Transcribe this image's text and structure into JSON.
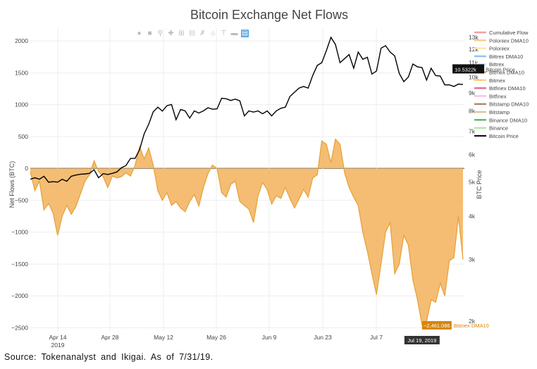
{
  "chart_data": {
    "type": "area",
    "title": "Bitcoin Exchange Net Flows",
    "ylabel": "Net Flows (BTC)",
    "y2label": "BTC Price",
    "ylim": [
      -2500,
      2200
    ],
    "yticks": [
      "2000",
      "1500",
      "1000",
      "500",
      "0",
      "−500",
      "−1000",
      "−1500",
      "−2000",
      "−2500"
    ],
    "y2ticks": [
      "13k",
      "12k",
      "11k",
      "10k",
      "9k",
      "8k",
      "7k",
      "6k",
      "5k",
      "4k",
      "3k",
      "2k"
    ],
    "xticks": [
      {
        "label": "Apr 14",
        "sub": "2019"
      },
      {
        "label": "Apr 28",
        "sub": ""
      },
      {
        "label": "May 12",
        "sub": ""
      },
      {
        "label": "May 26",
        "sub": ""
      },
      {
        "label": "Jun 9",
        "sub": ""
      },
      {
        "label": "Jun 23",
        "sub": ""
      },
      {
        "label": "Jul 7",
        "sub": ""
      }
    ],
    "series": [
      {
        "name": "Bitmex DMA10",
        "values": [
          -50,
          -350,
          -200,
          -650,
          -550,
          -700,
          -1050,
          -750,
          -580,
          -720,
          -600,
          -400,
          -200,
          -100,
          120,
          -50,
          -130,
          -300,
          -120,
          -150,
          -130,
          -70,
          -120,
          50,
          340,
          150,
          320,
          50,
          -350,
          -500,
          -380,
          -580,
          -520,
          -620,
          -680,
          -520,
          -410,
          -590,
          -300,
          -80,
          50,
          0,
          -380,
          -450,
          -250,
          -200,
          -520,
          -580,
          -640,
          -850,
          -430,
          -220,
          -330,
          -560,
          -430,
          -470,
          -300,
          -470,
          -620,
          -480,
          -330,
          -450,
          -150,
          -100,
          430,
          380,
          90,
          460,
          380,
          -70,
          -300,
          -450,
          -580,
          -1000,
          -1300,
          -1650,
          -1980,
          -1500,
          -1000,
          -850,
          -1650,
          -1500,
          -1050,
          -1200,
          -1750,
          -2060,
          -2450,
          -2400,
          -2060,
          -2100,
          -1800,
          -2000,
          -1450,
          -1400,
          -750,
          -1430
        ],
        "color": "#e8a33b"
      },
      {
        "name": "Bitcoin Price",
        "values": [
          5100,
          5150,
          5100,
          5200,
          5000,
          5020,
          5000,
          5100,
          5030,
          5200,
          5240,
          5270,
          5280,
          5300,
          5430,
          5150,
          5290,
          5260,
          5300,
          5350,
          5500,
          5580,
          5850,
          5850,
          6200,
          6880,
          7330,
          7960,
          8200,
          7990,
          8280,
          8350,
          7550,
          8080,
          8000,
          7630,
          8000,
          7890,
          8000,
          8170,
          8090,
          8110,
          8700,
          8670,
          8570,
          8650,
          8550,
          7740,
          8000,
          7940,
          8000,
          7850,
          8000,
          7740,
          8000,
          8140,
          8200,
          8800,
          9050,
          9300,
          9400,
          9300,
          10100,
          10800,
          11000,
          11900,
          13000,
          12400,
          11000,
          11300,
          11600,
          10600,
          11800,
          11250,
          11400,
          10200,
          10400,
          12100,
          12300,
          11800,
          11500,
          10250,
          9700,
          10000,
          10900,
          10700,
          10650,
          9800,
          10600,
          10100,
          10070,
          9500,
          9500,
          9400,
          9550,
          9530
        ],
        "color": "#000000"
      }
    ],
    "hover_labels": [
      {
        "text": "10.5322k",
        "series": "Bitcoin Price"
      },
      {
        "text": "−2,461.086",
        "series": "Bitmex DMA10"
      },
      {
        "text": "Jul 19, 2019",
        "series": ""
      }
    ],
    "legend": [
      {
        "name": "Cumulative Flow",
        "color": "#f2a0a6"
      },
      {
        "name": "Poloniex DMA10",
        "color": "#f7d08a"
      },
      {
        "name": "Poloniex",
        "color": "#f9e8a8"
      },
      {
        "name": "Bittrex DMA10",
        "color": "#8ec7ea"
      },
      {
        "name": "Bittrex",
        "color": "#c7e6f7"
      },
      {
        "name": "Bitmex DMA10",
        "color": "#e8a33b"
      },
      {
        "name": "Bitmex",
        "color": "#f6d27e"
      },
      {
        "name": "Bitfinex DMA10",
        "color": "#e66ea0"
      },
      {
        "name": "Bitfinex",
        "color": "#f6c7db"
      },
      {
        "name": "Bitstamp DMA10",
        "color": "#b88a5c"
      },
      {
        "name": "Bitstamp",
        "color": "#e3c2a2"
      },
      {
        "name": "Binance DMA10",
        "color": "#5cbf5c"
      },
      {
        "name": "Binance",
        "color": "#b7e6a6"
      },
      {
        "name": "Bitcoin Price",
        "color": "#000000"
      }
    ],
    "legend_position": "top-right",
    "grid": true
  },
  "footer": {
    "source": "Source: Tokenanalyst and Ikigai. As of 7/31/19."
  },
  "modebar": [
    "camera-icon",
    "save-icon",
    "zoom-icon",
    "pan-icon",
    "zoom-in-icon",
    "zoom-out-icon",
    "autoscale-icon",
    "reset-icon",
    "spike-icon",
    "compare-icon",
    "hover-icon"
  ]
}
